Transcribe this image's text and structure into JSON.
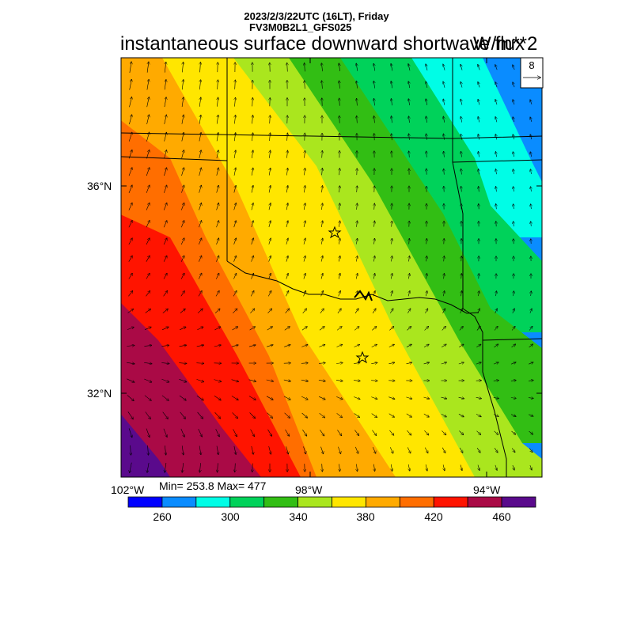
{
  "header": {
    "datetime": "2023/2/3/22UTC (16LT), Friday",
    "model": "FV3M0B2L1_GFS025"
  },
  "title": "instantaneous surface downward shortwave flux",
  "units": "W/m**2",
  "reference_vector": {
    "label": "8"
  },
  "axes": {
    "lat_labels": [
      "36°N",
      "32°N"
    ],
    "lon_labels": [
      "102°W",
      "98°W",
      "94°W"
    ]
  },
  "stats": {
    "text": "Min= 253.8 Max= 477"
  },
  "colorbar": {
    "colors": [
      "#0000ff",
      "#0a8cff",
      "#00fde6",
      "#00d25a",
      "#32be14",
      "#aae61e",
      "#ffe600",
      "#ffaa00",
      "#ff6e00",
      "#ff1400",
      "#aa0a46",
      "#5a0a8c"
    ],
    "labels": [
      "260",
      "300",
      "340",
      "380",
      "420",
      "460"
    ]
  },
  "field": {
    "min": 253.8,
    "max": 477,
    "isoline_values": [
      260,
      280,
      300,
      320,
      340,
      360,
      380,
      400,
      420,
      440,
      460
    ]
  },
  "markers": [
    {
      "name": "station-star-north"
    },
    {
      "name": "station-star-south"
    }
  ]
}
